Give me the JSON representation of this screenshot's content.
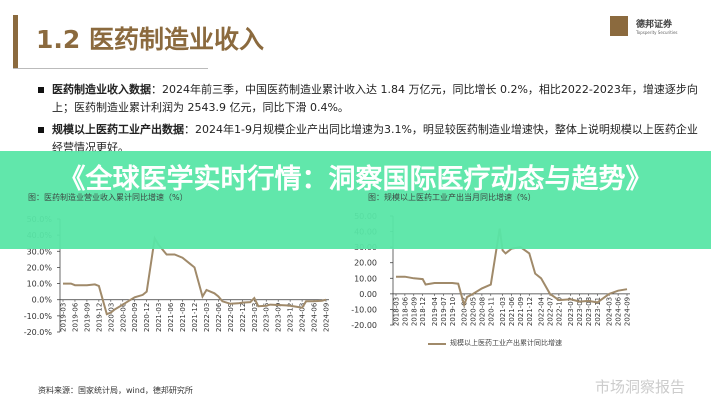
{
  "header": {
    "title": "1.2 医药制造业收入",
    "brand": {
      "name": "德邦证券",
      "sub": "Topsperity Securities",
      "color": "#8b6a3e"
    }
  },
  "bullets": [
    {
      "label": "医药制造业收入数据",
      "text": "：2024年前三季，中国医药制造业累计收入达 1.84 万亿元，同比增长 0.2%，相比2022-2023年，增速逐步向上；医药制造业累计利润为 2543.9 亿元，同比下滑 0.4%。"
    },
    {
      "label": "规模以上医药工业产出数据",
      "text": "：2024年1-9月规模企业产出同比增速为3.1%，明显较医药制造业增速快，整体上说明规模以上医药企业经营情况更好。"
    }
  ],
  "banner": {
    "text": "《全球医学实时行情：洞察国际医疗动态与趋势》",
    "color": "#58e6a6"
  },
  "chart_data": [
    {
      "type": "line",
      "title": "图：医药制造业营业收入累计同比增速（%）",
      "ylim": [
        -20,
        50
      ],
      "yticks": [
        "50.0%",
        "40.0%",
        "30.0%",
        "20.0%",
        "10.0%",
        "0.0%",
        "-10.0%",
        "-20.0%"
      ],
      "tick_values": [
        50,
        40,
        30,
        20,
        10,
        0,
        -10,
        -20
      ],
      "xticks": [
        "2019-03",
        "2019-06",
        "2019-09",
        "2019-12",
        "2020-03",
        "2020-06",
        "2020-09",
        "2020-12",
        "2021-03",
        "2021-06",
        "2021-09",
        "2021-12",
        "2022-03",
        "2022-06",
        "2022-09",
        "2022-12",
        "2023-03",
        "2023-06",
        "2023-09",
        "2023-12",
        "2024-03",
        "2024-06",
        "2024-09"
      ],
      "color": "#a08a6a",
      "x": [
        "2019-03",
        "2019-05",
        "2019-06",
        "2019-08",
        "2019-09",
        "2019-11",
        "2019-12",
        "2020-02",
        "2020-03",
        "2020-04",
        "2020-06",
        "2020-08",
        "2020-09",
        "2020-11",
        "2020-12",
        "2021-02",
        "2021-03",
        "2021-05",
        "2021-06",
        "2021-07",
        "2021-09",
        "2021-11",
        "2021-12",
        "2022-02",
        "2022-03",
        "2022-05",
        "2022-06",
        "2022-07",
        "2022-09",
        "2022-11",
        "2022-12",
        "2023-02",
        "2023-03",
        "2023-04",
        "2023-06",
        "2023-07",
        "2023-09",
        "2023-11",
        "2023-12",
        "2024-02",
        "2024-03",
        "2024-04",
        "2024-06",
        "2024-08",
        "2024-09"
      ],
      "y": [
        10,
        10,
        9,
        9,
        9,
        9.5,
        8.5,
        -9,
        -8,
        -6,
        -3,
        0,
        1.5,
        3,
        5,
        38,
        34,
        28,
        28,
        28,
        26,
        22,
        20,
        2,
        6,
        4,
        2,
        -1,
        -2.5,
        -2.2,
        -1.8,
        -1.5,
        1,
        -4,
        -3.8,
        -3,
        -3.3,
        -3.5,
        -3.8,
        -4.5,
        -5,
        -1,
        -1,
        -0.6,
        0
      ]
    },
    {
      "type": "line",
      "title": "图：规模以上医药工业产出当月同比增速（%）",
      "ylim": [
        -20,
        50
      ],
      "yticks": [
        "50.00",
        "40.00",
        "30.00",
        "20.00",
        "10.00",
        "0.00",
        "-10.00",
        "-20.00"
      ],
      "tick_values": [
        50,
        40,
        30,
        20,
        10,
        0,
        -10,
        -20
      ],
      "xticks": [
        "2018-03",
        "2018-06",
        "2018-09",
        "2018-12",
        "2019-04",
        "2019-07",
        "2019-10",
        "2020-02",
        "2020-05",
        "2020-08",
        "2020-11",
        "2021-03",
        "2021-06",
        "2021-09",
        "2021-12",
        "2022-04",
        "2022-07",
        "2022-10",
        "2023-02",
        "2023-05",
        "2023-08",
        "2023-11",
        "2024-03",
        "2024-06",
        "2024-09"
      ],
      "legend": "规模以上医药工业产出累计同比增速",
      "legend_position": "bottom",
      "color": "#a08a6a",
      "x": [
        "2018-03",
        "2018-06",
        "2018-09",
        "2018-12",
        "2019-01",
        "2019-04",
        "2019-07",
        "2019-10",
        "2019-12",
        "2020-02",
        "2020-03",
        "2020-05",
        "2020-08",
        "2020-11",
        "2021-02",
        "2021-03",
        "2021-04",
        "2021-06",
        "2021-09",
        "2021-12",
        "2022-02",
        "2022-04",
        "2022-07",
        "2022-10",
        "2023-02",
        "2023-05",
        "2023-08",
        "2023-11",
        "2024-03",
        "2024-06",
        "2024-09"
      ],
      "y": [
        11,
        11,
        10,
        9.5,
        6,
        7,
        7,
        7,
        6.5,
        -7,
        -2,
        0,
        3.5,
        6,
        42,
        28,
        26,
        29,
        30,
        26,
        13,
        10,
        0,
        -4,
        -3.5,
        -5,
        -4.5,
        -5.5,
        0,
        2,
        3
      ]
    }
  ],
  "footer": {
    "source": "资料来源：国家统计局，wind，德邦研究所",
    "watermark": "市场洞察报告"
  }
}
